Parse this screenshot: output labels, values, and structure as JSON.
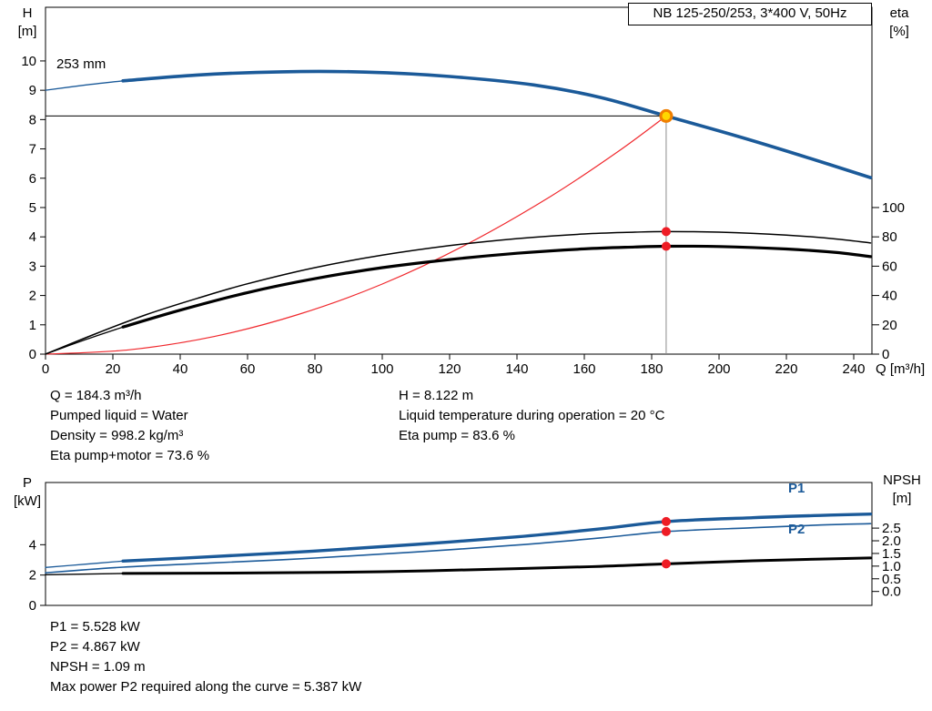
{
  "colors": {
    "curve_blue": "#1B5A99",
    "curve_black": "#000000",
    "system_red": "#F0282D",
    "marker_red": "#EE1C25",
    "duty_fill": "#FFD700",
    "duty_ring": "#F07F00",
    "ref_gray": "#8C8C8C"
  },
  "title_box": {
    "text": "NB 125-250/253, 3*400 V, 50Hz"
  },
  "labels": {
    "impeller": "253 mm",
    "h_axis": "H",
    "h_unit": "[m]",
    "eta_axis": "eta",
    "eta_unit": "[%]",
    "q_axis": "Q [m³/h]",
    "p_axis": "P",
    "p_unit": "[kW]",
    "npsh_axis": "NPSH",
    "npsh_unit": "[m]",
    "p1": "P1",
    "p2": "P2"
  },
  "info_top_left": [
    "Q = 184.3 m³/h",
    "Pumped liquid = Water",
    "Density = 998.2 kg/m³",
    "Eta pump+motor = 73.6 %"
  ],
  "info_top_right": [
    "H = 8.122 m",
    "Liquid temperature during operation = 20 °C",
    "Eta pump = 83.6 %"
  ],
  "info_bottom": [
    "P1 = 5.528 kW",
    "P2 = 4.867 kW",
    "NPSH = 1.09 m",
    "Max power P2 required along the curve = 5.387 kW"
  ],
  "chart_data": [
    {
      "type": "line",
      "name": "head-efficiency-chart",
      "title": "NB 125-250/253, 3*400 V, 50Hz",
      "impeller_diameter": "253 mm",
      "x_axis": {
        "label": "Q [m³/h]",
        "min": 0,
        "max": 245.4,
        "ticks": [
          0,
          20,
          40,
          60,
          80,
          100,
          120,
          140,
          160,
          180,
          200,
          220,
          240
        ]
      },
      "y_axes": {
        "H": {
          "side": "left",
          "label": "H [m]",
          "min": 0,
          "max": 11.83,
          "ticks": [
            0,
            1,
            2,
            3,
            4,
            5,
            6,
            7,
            8,
            9,
            10
          ]
        },
        "eta": {
          "side": "right",
          "label": "eta [%]",
          "min": 0,
          "max": 236.6,
          "ticks": [
            0,
            20,
            40,
            60,
            80,
            100
          ]
        }
      },
      "series": [
        {
          "name": "system-curve",
          "axis": "H",
          "color": "#F0282D",
          "segments": [
            {
              "w": 1.2,
              "pts": [
                [
                  0,
                  0
                ],
                [
                  25,
                  0.15
                ],
                [
                  50,
                  0.6
                ],
                [
                  75,
                  1.35
                ],
                [
                  100,
                  2.39
                ],
                [
                  125,
                  3.74
                ],
                [
                  150,
                  5.38
                ],
                [
                  170,
                  6.91
                ],
                [
                  184.3,
                  8.122
                ]
              ]
            }
          ]
        },
        {
          "name": "eta-pump-curve",
          "axis": "eta",
          "color": "#000000",
          "segments": [
            {
              "w": 1.5,
              "pts": [
                [
                  0,
                  0
                ],
                [
                  15,
                  14
                ],
                [
                  30,
                  27
                ],
                [
                  45,
                  38
                ],
                [
                  60,
                  48
                ],
                [
                  80,
                  59
                ],
                [
                  100,
                  67.5
                ],
                [
                  120,
                  74
                ],
                [
                  140,
                  78.8
                ],
                [
                  160,
                  82
                ],
                [
                  175,
                  83.2
                ],
                [
                  184.3,
                  83.6
                ],
                [
                  200,
                  83.2
                ],
                [
                  220,
                  81.2
                ],
                [
                  235,
                  78.5
                ],
                [
                  245,
                  75.8
                ]
              ]
            }
          ]
        },
        {
          "name": "eta-pump-motor-curve",
          "axis": "eta",
          "color": "#000000",
          "segments": [
            {
              "w": 1.3,
              "pts": [
                [
                  0,
                  0
                ],
                [
                  12,
                  10
                ],
                [
                  23,
                  18.5
                ]
              ]
            },
            {
              "w": 3.2,
              "pts": [
                [
                  23,
                  18.5
                ],
                [
                  40,
                  30
                ],
                [
                  60,
                  42
                ],
                [
                  80,
                  51.5
                ],
                [
                  100,
                  59
                ],
                [
                  120,
                  64.5
                ],
                [
                  140,
                  68.8
                ],
                [
                  160,
                  71.8
                ],
                [
                  175,
                  73.1
                ],
                [
                  184.3,
                  73.6
                ],
                [
                  200,
                  73.4
                ],
                [
                  220,
                  71.7
                ],
                [
                  235,
                  69.3
                ],
                [
                  245,
                  66.5
                ]
              ]
            }
          ]
        },
        {
          "name": "head-curve",
          "axis": "H",
          "color": "#1B5A99",
          "segments": [
            {
              "w": 1.3,
              "pts": [
                [
                  0,
                  9.0
                ],
                [
                  12,
                  9.18
                ],
                [
                  23,
                  9.32
                ]
              ]
            },
            {
              "w": 3.6,
              "pts": [
                [
                  23,
                  9.32
                ],
                [
                  45,
                  9.52
                ],
                [
                  70,
                  9.63
                ],
                [
                  95,
                  9.62
                ],
                [
                  120,
                  9.47
                ],
                [
                  145,
                  9.18
                ],
                [
                  165,
                  8.75
                ],
                [
                  184.3,
                  8.122
                ],
                [
                  205,
                  7.45
                ],
                [
                  225,
                  6.75
                ],
                [
                  245,
                  6.02
                ]
              ]
            }
          ]
        }
      ],
      "reference_lines": [
        {
          "name": "head-reference-line",
          "axis": "H",
          "color": "#000000",
          "width": 1,
          "from": [
            0,
            8.122
          ],
          "to": [
            184.3,
            8.122
          ]
        },
        {
          "name": "flow-reference-line",
          "axis": "H",
          "color": "#8C8C8C",
          "width": 1,
          "from": [
            184.3,
            0
          ],
          "to": [
            184.3,
            8.122
          ]
        }
      ],
      "markers": [
        {
          "name": "duty-point-marker",
          "axis": "H",
          "q": 184.3,
          "v": 8.122,
          "r": 6,
          "fill": "#FFD700",
          "stroke": "#F07F00",
          "sw": 3
        },
        {
          "name": "eta-pump-point",
          "axis": "eta",
          "q": 184.3,
          "v": 83.6,
          "r": 5,
          "fill": "#EE1C25"
        },
        {
          "name": "eta-pump-motor-point",
          "axis": "eta",
          "q": 184.3,
          "v": 73.6,
          "r": 5,
          "fill": "#EE1C25"
        }
      ],
      "duty_point": {
        "Q_m3h": 184.3,
        "H_m": 8.122,
        "eta_pump_pct": 83.6,
        "eta_pump_motor_pct": 73.6
      }
    },
    {
      "type": "line",
      "name": "power-npsh-chart",
      "x_axis": {
        "label": "",
        "min": 0,
        "max": 245.4,
        "ticks": []
      },
      "y_axes": {
        "P": {
          "side": "left",
          "label": "P [kW]",
          "min": 0,
          "max": 8.1,
          "ticks": [
            0,
            2,
            4
          ]
        },
        "NPSH": {
          "side": "right",
          "label": "NPSH [m]",
          "min": -0.55,
          "max": 4.3,
          "ticks": [
            0,
            0.5,
            1,
            1.5,
            2,
            2.5
          ],
          "decimals": 1
        }
      },
      "series": [
        {
          "name": "npsh-curve",
          "axis": "NPSH",
          "color": "#000000",
          "segments": [
            {
              "w": 1.4,
              "pts": [
                [
                  0,
                  0.66
                ],
                [
                  23,
                  0.71
                ]
              ]
            },
            {
              "w": 3.0,
              "pts": [
                [
                  23,
                  0.71
                ],
                [
                  60,
                  0.73
                ],
                [
                  100,
                  0.78
                ],
                [
                  140,
                  0.9
                ],
                [
                  165,
                  0.99
                ],
                [
                  184.3,
                  1.09
                ],
                [
                  210,
                  1.21
                ],
                [
                  230,
                  1.28
                ],
                [
                  245,
                  1.32
                ]
              ]
            }
          ]
        },
        {
          "name": "p2-curve",
          "axis": "P",
          "color": "#1B5A99",
          "segments": [
            {
              "w": 1.6,
              "pts": [
                [
                  0,
                  2.15
                ],
                [
                  23,
                  2.52
                ],
                [
                  50,
                  2.8
                ],
                [
                  80,
                  3.12
                ],
                [
                  110,
                  3.52
                ],
                [
                  140,
                  3.98
                ],
                [
                  165,
                  4.45
                ],
                [
                  184.3,
                  4.867
                ],
                [
                  210,
                  5.12
                ],
                [
                  230,
                  5.3
                ],
                [
                  245,
                  5.387
                ]
              ]
            }
          ]
        },
        {
          "name": "p1-curve",
          "axis": "P",
          "color": "#1B5A99",
          "segments": [
            {
              "w": 1.3,
              "pts": [
                [
                  0,
                  2.5
                ],
                [
                  12,
                  2.72
                ],
                [
                  23,
                  2.92
                ]
              ]
            },
            {
              "w": 3.4,
              "pts": [
                [
                  23,
                  2.92
                ],
                [
                  50,
                  3.22
                ],
                [
                  80,
                  3.58
                ],
                [
                  110,
                  4.02
                ],
                [
                  140,
                  4.52
                ],
                [
                  165,
                  5.05
                ],
                [
                  184.3,
                  5.528
                ],
                [
                  210,
                  5.78
                ],
                [
                  230,
                  5.93
                ],
                [
                  245,
                  6.02
                ]
              ]
            }
          ]
        }
      ],
      "reference_lines": [],
      "markers": [
        {
          "name": "p1-point",
          "axis": "P",
          "q": 184.3,
          "v": 5.528,
          "r": 5,
          "fill": "#EE1C25"
        },
        {
          "name": "p2-point",
          "axis": "P",
          "q": 184.3,
          "v": 4.867,
          "r": 5,
          "fill": "#EE1C25"
        },
        {
          "name": "npsh-point",
          "axis": "NPSH",
          "q": 184.3,
          "v": 1.09,
          "r": 5,
          "fill": "#EE1C25"
        }
      ],
      "duty_point": {
        "P1_kW": 5.528,
        "P2_kW": 4.867,
        "NPSH_m": 1.09,
        "max_P2_kW": 5.387
      }
    }
  ]
}
